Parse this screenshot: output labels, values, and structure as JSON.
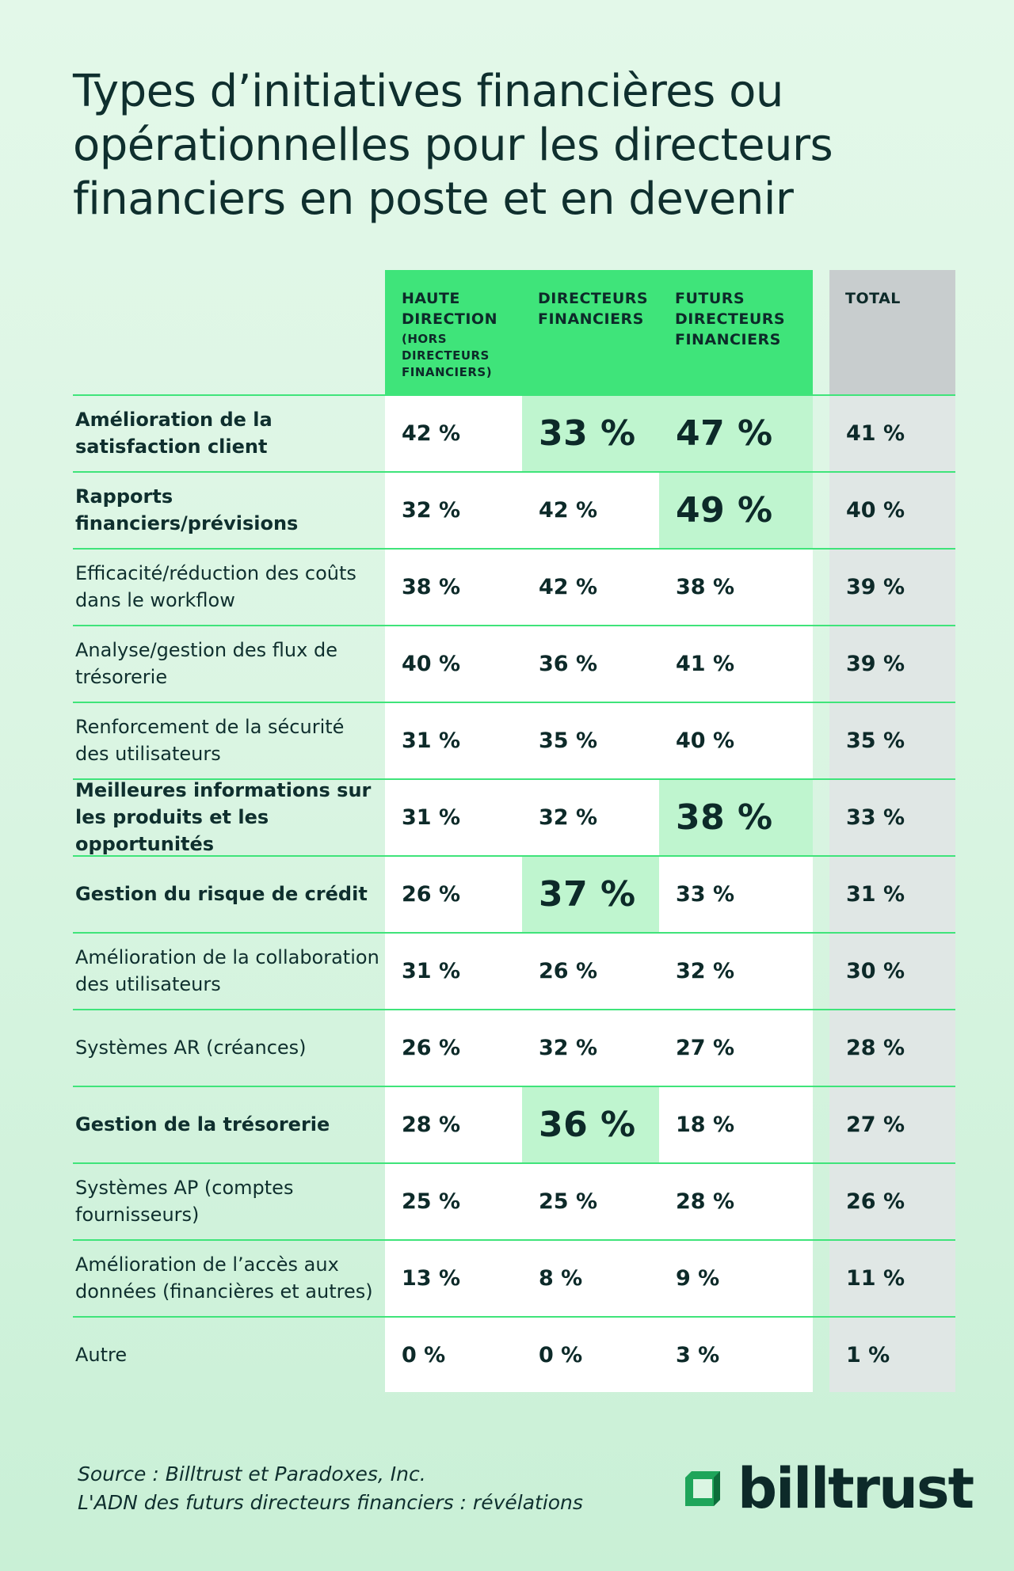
{
  "title": "Types d’initiatives financières ou opérationnelles pour les directeurs financiers en poste et en devenir",
  "colors": {
    "header_green": "#3fe47a",
    "highlight_green": "#bff5cf",
    "total_gray": "#c8cdce",
    "text_dark": "#0d2a29"
  },
  "headers": {
    "col1": "HAUTE DIRECTION",
    "col1_sub": "(HORS DIRECTEURS FINANCIERS)",
    "col2": "DIRECTEURS FINANCIERS",
    "col3": "FUTURS DIRECTEURS FINANCIERS",
    "total": "TOTAL"
  },
  "chart_data": {
    "type": "table",
    "title": "Types d’initiatives financières ou opérationnelles pour les directeurs financiers en poste et en devenir",
    "columns": [
      "HAUTE DIRECTION (HORS DIRECTEURS FINANCIERS)",
      "DIRECTEURS FINANCIERS",
      "FUTURS DIRECTEURS FINANCIERS",
      "TOTAL"
    ],
    "rows": [
      {
        "label": "Amélioration de la satisfaction client",
        "bold": true,
        "values": [
          "42 %",
          "33 %",
          "47 %",
          "41 %"
        ],
        "highlight": [
          false,
          true,
          true,
          false
        ]
      },
      {
        "label": "Rapports financiers/prévisions",
        "bold": true,
        "values": [
          "32 %",
          "42 %",
          "49 %",
          "40 %"
        ],
        "highlight": [
          false,
          false,
          true,
          false
        ]
      },
      {
        "label": "Efficacité/réduction des coûts dans le workflow",
        "bold": false,
        "values": [
          "38 %",
          "42 %",
          "38 %",
          "39 %"
        ],
        "highlight": [
          false,
          false,
          false,
          false
        ]
      },
      {
        "label": "Analyse/gestion des flux de trésorerie",
        "bold": false,
        "values": [
          "40 %",
          "36 %",
          "41 %",
          "39 %"
        ],
        "highlight": [
          false,
          false,
          false,
          false
        ]
      },
      {
        "label": "Renforcement de la sécurité des utilisateurs",
        "bold": false,
        "values": [
          "31 %",
          "35 %",
          "40 %",
          "35 %"
        ],
        "highlight": [
          false,
          false,
          false,
          false
        ]
      },
      {
        "label": "Meilleures informations sur les produits et les opportunités",
        "bold": true,
        "values": [
          "31 %",
          "32 %",
          "38 %",
          "33 %"
        ],
        "highlight": [
          false,
          false,
          true,
          false
        ]
      },
      {
        "label": "Gestion du risque de crédit",
        "bold": true,
        "values": [
          "26 %",
          "37 %",
          "33 %",
          "31 %"
        ],
        "highlight": [
          false,
          true,
          false,
          false
        ]
      },
      {
        "label": "Amélioration de la collaboration des utilisateurs",
        "bold": false,
        "values": [
          "31 %",
          "26 %",
          "32 %",
          "30 %"
        ],
        "highlight": [
          false,
          false,
          false,
          false
        ]
      },
      {
        "label": "Systèmes AR (créances)",
        "bold": false,
        "values": [
          "26 %",
          "32 %",
          "27 %",
          "28 %"
        ],
        "highlight": [
          false,
          false,
          false,
          false
        ]
      },
      {
        "label": "Gestion de la trésorerie",
        "bold": true,
        "values": [
          "28 %",
          "36 %",
          "18 %",
          "27 %"
        ],
        "highlight": [
          false,
          true,
          false,
          false
        ]
      },
      {
        "label": "Systèmes AP (comptes fournisseurs)",
        "bold": false,
        "values": [
          "25 %",
          "25 %",
          "28 %",
          "26 %"
        ],
        "highlight": [
          false,
          false,
          false,
          false
        ]
      },
      {
        "label": "Amélioration de l’accès aux données (financières et autres)",
        "bold": false,
        "values": [
          "13 %",
          "8 %",
          "9 %",
          "11 %"
        ],
        "highlight": [
          false,
          false,
          false,
          false
        ]
      },
      {
        "label": "Autre",
        "bold": false,
        "values": [
          "0 %",
          "0 %",
          "3 %",
          "1 %"
        ],
        "highlight": [
          false,
          false,
          false,
          false
        ]
      }
    ]
  },
  "footer": {
    "source_line1": "Source : Billtrust et Paradoxes, Inc.",
    "source_line2": "L'ADN des futurs directeurs financiers : révélations",
    "logo_text": "billtrust",
    "logo_icon": "billtrust-logo-icon"
  }
}
